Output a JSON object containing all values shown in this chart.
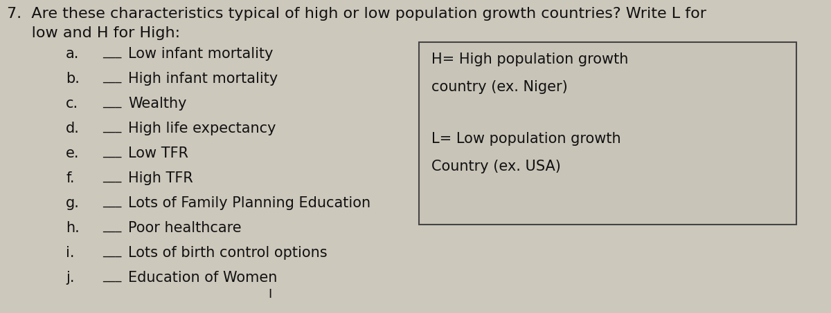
{
  "background_color": "#cdc8bc",
  "title_line1": "7.  Are these characteristics typical of high or low population growth countries? Write L for",
  "title_line2": "     low and H for High:",
  "items": [
    {
      "label": "a.",
      "text": "Low infant mortality"
    },
    {
      "label": "b.",
      "text": "High infant mortality"
    },
    {
      "label": "c.",
      "text": "Wealthy"
    },
    {
      "label": "d.",
      "text": "High life expectancy"
    },
    {
      "label": "e.",
      "text": "Low TFR"
    },
    {
      "label": "f.",
      "text": "High TFR"
    },
    {
      "label": "g.",
      "text": "Lots of Family Planning Education"
    },
    {
      "label": "h.",
      "text": "Poor healthcare"
    },
    {
      "label": "i.",
      "text": "Lots of birth control options"
    },
    {
      "label": "j.",
      "text": "Education of Women"
    }
  ],
  "box_line1": "H= High population growth",
  "box_line2": "country (ex. Niger)",
  "box_line3": "L= Low population growth",
  "box_line4": "Country (ex. USA)",
  "font_size_title": 16,
  "font_size_items": 15,
  "font_size_box": 15,
  "text_color": "#111111",
  "box_bg": "#c8c4b8",
  "box_edge": "#444444"
}
